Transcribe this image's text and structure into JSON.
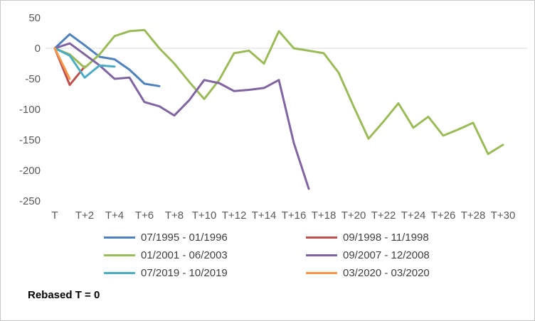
{
  "chart_data": {
    "type": "line",
    "title": "",
    "footnote": "Rebased T = 0",
    "xlim": [
      0,
      30
    ],
    "ylim": [
      -250,
      50
    ],
    "grid": "zero-line-only",
    "legend_position": "bottom",
    "axis_text_color": "#595959",
    "zero_line_color": "#d9d9d9",
    "y_ticks": [
      50,
      0,
      -50,
      -100,
      -150,
      -200,
      -250
    ],
    "x_ticks": [
      {
        "pos": 0,
        "label": "T"
      },
      {
        "pos": 2,
        "label": "T+2"
      },
      {
        "pos": 4,
        "label": "T+4"
      },
      {
        "pos": 6,
        "label": "T+6"
      },
      {
        "pos": 8,
        "label": "T+8"
      },
      {
        "pos": 10,
        "label": "T+10"
      },
      {
        "pos": 12,
        "label": "T+12"
      },
      {
        "pos": 14,
        "label": "T+14"
      },
      {
        "pos": 16,
        "label": "T+16"
      },
      {
        "pos": 18,
        "label": "T+18"
      },
      {
        "pos": 20,
        "label": "T+20"
      },
      {
        "pos": 22,
        "label": "T+22"
      },
      {
        "pos": 24,
        "label": "T+24"
      },
      {
        "pos": 26,
        "label": "T+26"
      },
      {
        "pos": 28,
        "label": "T+28"
      },
      {
        "pos": 30,
        "label": "T+30"
      }
    ],
    "series": [
      {
        "name": "07/1995 - 01/1996",
        "color": "#4F81BD",
        "x_start": 0,
        "values": [
          0,
          23,
          5,
          -14,
          -18,
          -35,
          -58,
          -62
        ]
      },
      {
        "name": "09/1998 - 11/1998",
        "color": "#C0504D",
        "x_start": 0,
        "values": [
          0,
          -60,
          -30
        ]
      },
      {
        "name": "01/2001 - 06/2003",
        "color": "#9BBB59",
        "x_start": 0,
        "values": [
          0,
          -10,
          -32,
          -10,
          20,
          28,
          30,
          0,
          -25,
          -55,
          -83,
          -52,
          -8,
          -4,
          -25,
          28,
          0,
          -4,
          -8,
          -40,
          -95,
          -148,
          -120,
          -90,
          -130,
          -112,
          -143,
          -133,
          -122,
          -173,
          -158
        ]
      },
      {
        "name": "09/2007 - 12/2008",
        "color": "#8064A2",
        "x_start": 0,
        "values": [
          0,
          8,
          -10,
          -28,
          -50,
          -48,
          -88,
          -95,
          -110,
          -85,
          -52,
          -57,
          -70,
          -68,
          -65,
          -52,
          -155,
          -230
        ]
      },
      {
        "name": "07/2019 - 10/2019",
        "color": "#4BACC6",
        "x_start": 0,
        "values": [
          0,
          -12,
          -48,
          -28,
          -30
        ]
      },
      {
        "name": "03/2020 - 03/2020",
        "color": "#F79646",
        "x_start": 0,
        "values": [
          0,
          -50
        ]
      }
    ]
  }
}
